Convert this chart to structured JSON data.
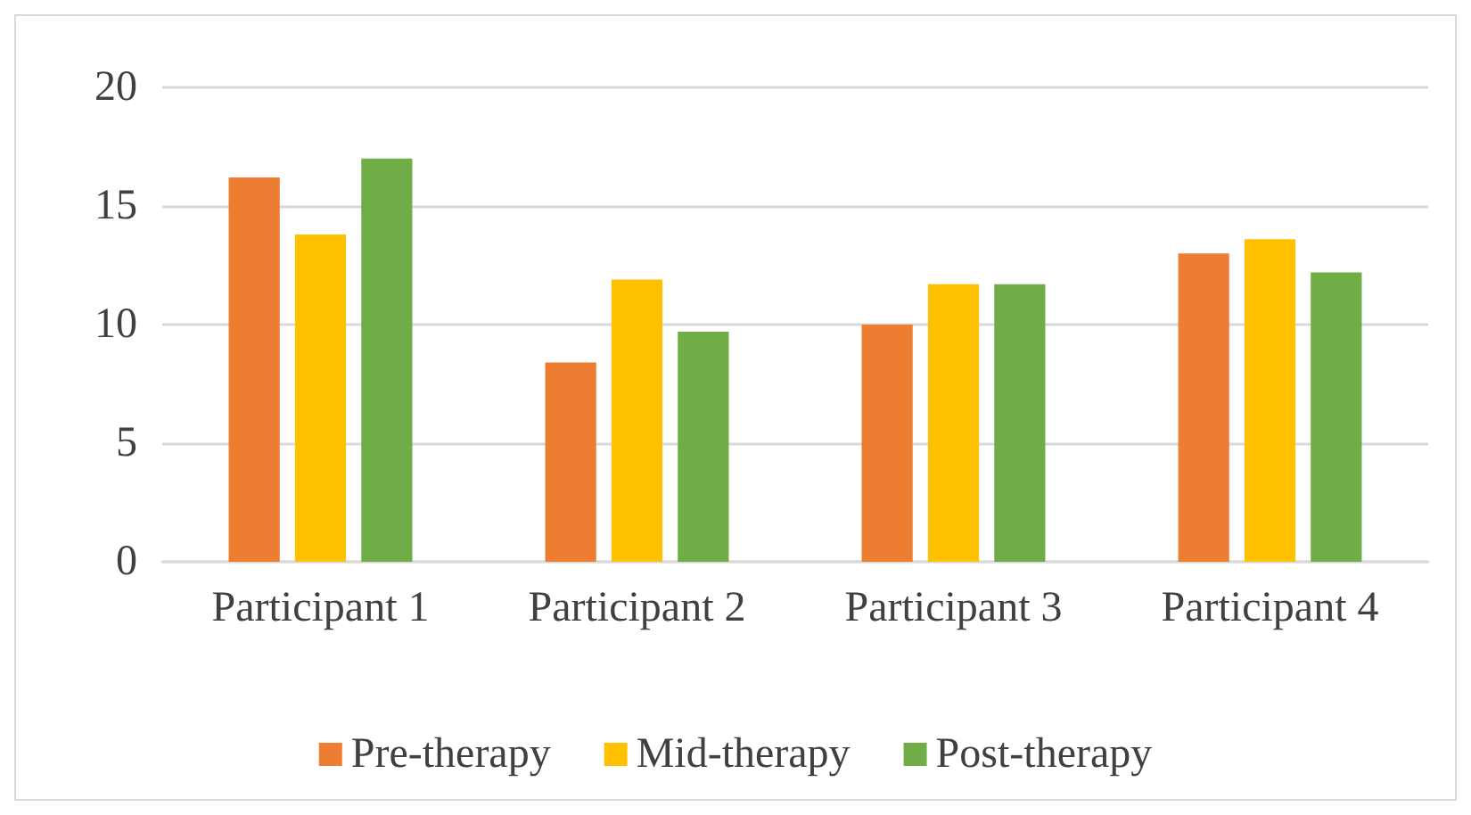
{
  "chart_data": {
    "type": "bar",
    "categories": [
      "Participant 1",
      "Participant 2",
      "Participant 3",
      "Participant 4"
    ],
    "series": [
      {
        "name": "Pre-therapy",
        "color": "#ed7d31",
        "values": [
          16.2,
          8.4,
          10.0,
          13.0
        ]
      },
      {
        "name": "Mid-therapy",
        "color": "#ffc000",
        "values": [
          13.8,
          11.9,
          11.7,
          13.6
        ]
      },
      {
        "name": "Post-therapy",
        "color": "#70ad47",
        "values": [
          17.0,
          9.7,
          11.7,
          12.2
        ]
      }
    ],
    "ylim": [
      0,
      20
    ],
    "yticks": [
      0,
      5,
      10,
      15,
      20
    ],
    "grid": "y",
    "legend": "bottom"
  }
}
